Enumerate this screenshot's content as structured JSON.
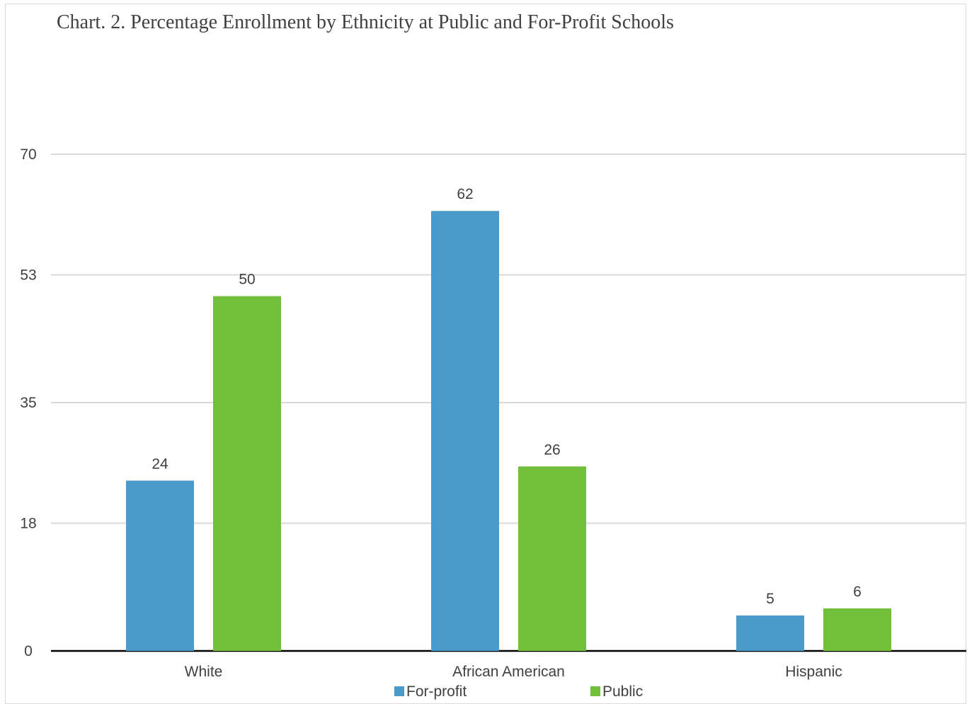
{
  "chart_data": {
    "type": "bar",
    "title": "Chart. 2. Percentage Enrollment by Ethnicity at Public and For-Profit Schools",
    "categories": [
      "White",
      "African American",
      "Hispanic"
    ],
    "series": [
      {
        "name": "For-profit",
        "color": "#4a9bc9",
        "values": [
          24,
          62,
          5
        ]
      },
      {
        "name": "Public",
        "color": "#72bf3b",
        "values": [
          50,
          26,
          6
        ]
      }
    ],
    "yticks": [
      0,
      18,
      35,
      53,
      70
    ],
    "ylim": [
      0,
      70
    ],
    "grid": true,
    "legend": "bottom"
  }
}
